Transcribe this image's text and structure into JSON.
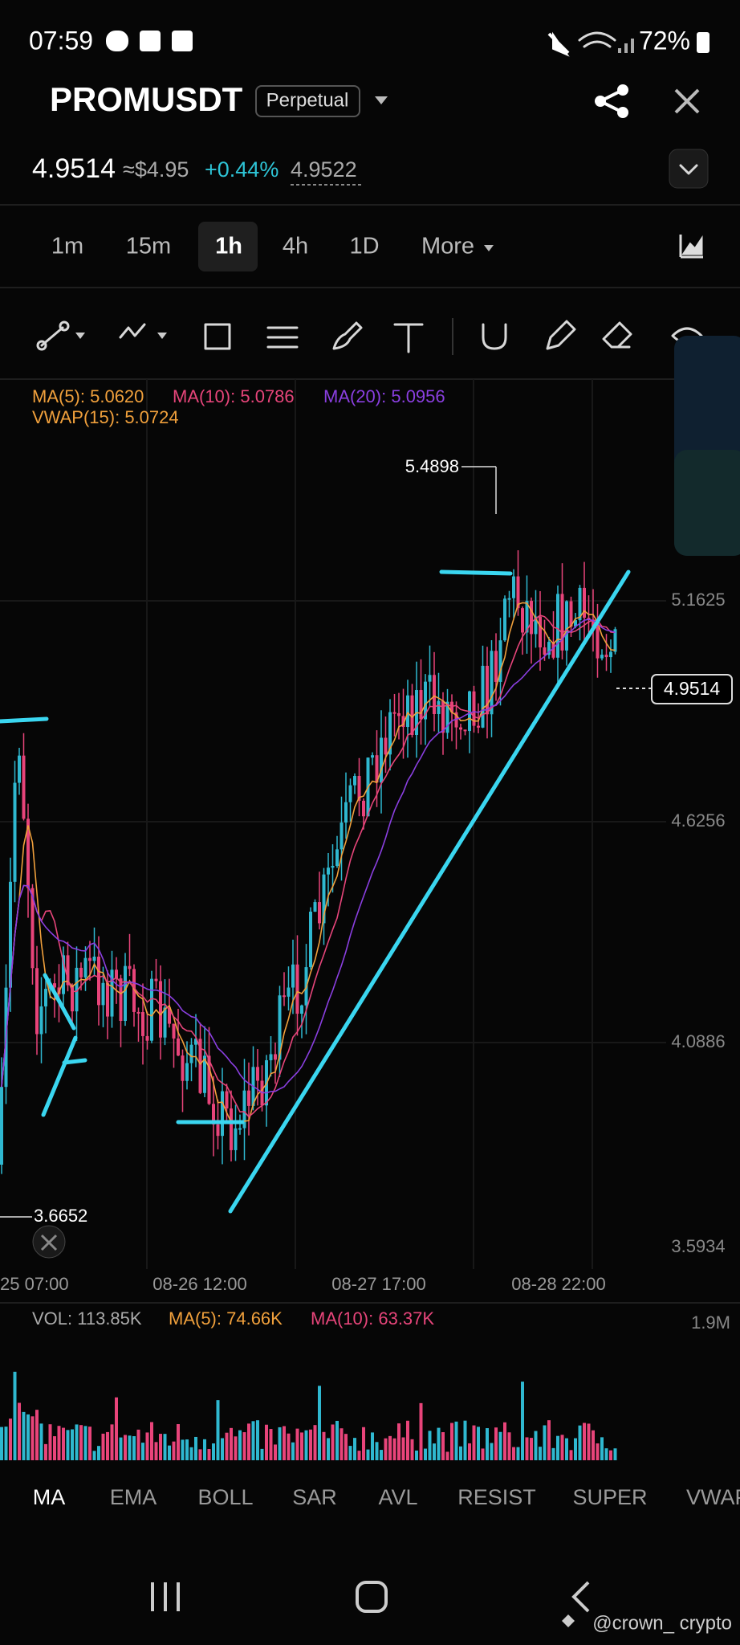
{
  "status_bar": {
    "time": "07:59",
    "battery": "72%"
  },
  "header": {
    "symbol": "PROMUSDT",
    "contract": "Perpetual"
  },
  "price": {
    "last": "4.9514",
    "usd": "≈$4.95",
    "change": "+0.44%",
    "mark": "4.9522"
  },
  "timeframes": [
    "1m",
    "15m",
    "1h",
    "4h",
    "1D",
    "More"
  ],
  "chart": {
    "legend": [
      "MA(5): 5.0620",
      "MA(10): 5.0786",
      "MA(20): 5.0956",
      "VWAP(15): 5.0724"
    ],
    "price_axis": [
      "5.1625",
      "4.6256",
      "4.0886",
      "3.5934"
    ],
    "high_label": "5.4898",
    "low_label": "3.6652",
    "current": "4.9514",
    "time_axis": [
      "25 07:00",
      "08-26 12:00",
      "08-27 17:00",
      "08-28 22:00"
    ]
  },
  "volume": {
    "legend": [
      "VOL: 113.85K",
      "MA(5): 74.66K",
      "MA(10): 63.37K"
    ],
    "axis": "1.9M"
  },
  "indicators": [
    "MA",
    "EMA",
    "BOLL",
    "SAR",
    "AVL",
    "RESIST",
    "SUPER",
    "VWAP"
  ],
  "watermark": "@crown_ crypto"
}
